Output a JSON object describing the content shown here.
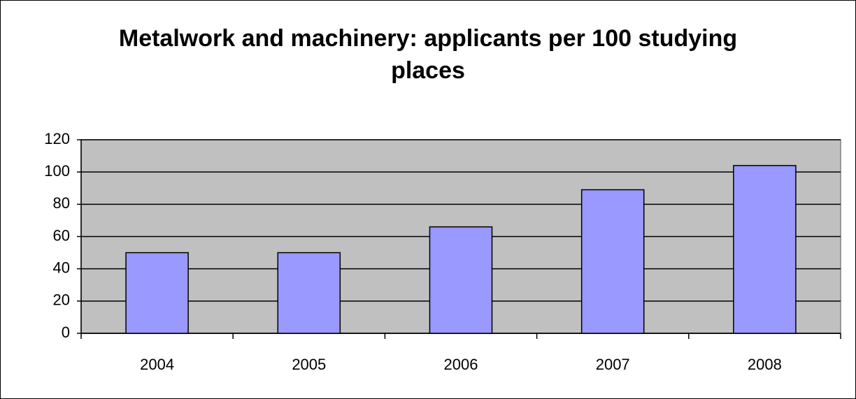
{
  "chart_data": {
    "type": "bar",
    "title": "Metalwork and machinery: applicants per 100 studying places",
    "categories": [
      "2004",
      "2005",
      "2006",
      "2007",
      "2008"
    ],
    "values": [
      50,
      50,
      66,
      89,
      104
    ],
    "color": "#9999ff",
    "ylim": [
      0,
      120
    ],
    "yticks": [
      0,
      20,
      40,
      60,
      80,
      100,
      120
    ],
    "grid": true
  }
}
